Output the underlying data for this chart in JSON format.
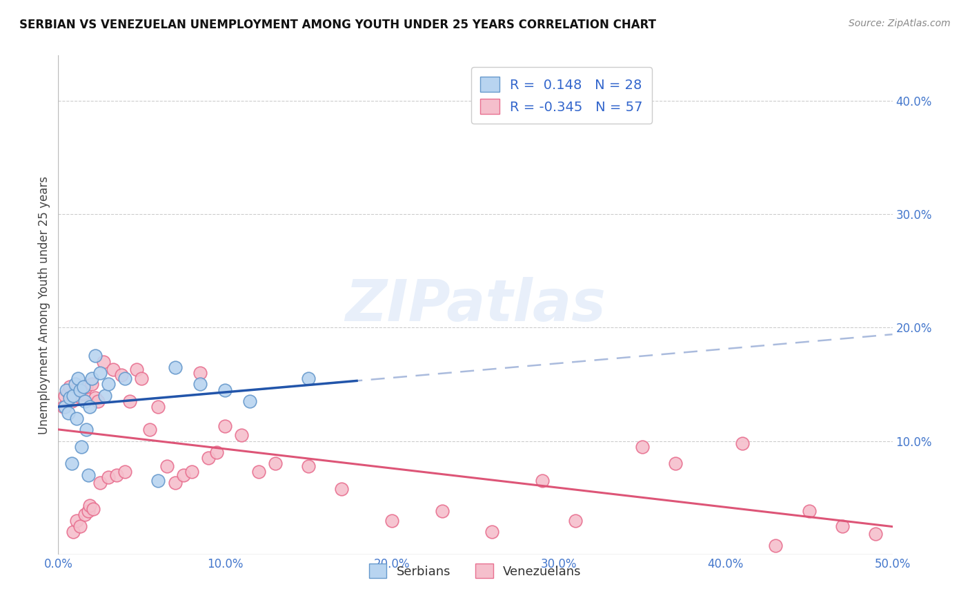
{
  "title": "SERBIAN VS VENEZUELAN UNEMPLOYMENT AMONG YOUTH UNDER 25 YEARS CORRELATION CHART",
  "source": "Source: ZipAtlas.com",
  "ylabel": "Unemployment Among Youth under 25 years",
  "xlim": [
    0.0,
    0.5
  ],
  "ylim": [
    0.0,
    0.44
  ],
  "xticks": [
    0.0,
    0.1,
    0.2,
    0.3,
    0.4,
    0.5
  ],
  "yticks": [
    0.1,
    0.2,
    0.3,
    0.4
  ],
  "xtick_labels": [
    "0.0%",
    "10.0%",
    "20.0%",
    "30.0%",
    "40.0%",
    "50.0%"
  ],
  "ytick_labels": [
    "10.0%",
    "20.0%",
    "30.0%",
    "40.0%"
  ],
  "watermark": "ZIPatlas",
  "serbian_color": "#b8d4f0",
  "venezuelan_color": "#f5bfcc",
  "serbian_edge_color": "#6699cc",
  "venezuelan_edge_color": "#e87090",
  "trend_serbian_color": "#2255aa",
  "trend_venezuelan_color": "#dd5577",
  "r_serbian": 0.148,
  "n_serbian": 28,
  "r_venezuelan": -0.345,
  "n_venezuelan": 57,
  "serbian_x": [
    0.004,
    0.005,
    0.006,
    0.007,
    0.008,
    0.009,
    0.01,
    0.011,
    0.012,
    0.013,
    0.014,
    0.015,
    0.016,
    0.017,
    0.018,
    0.019,
    0.02,
    0.022,
    0.025,
    0.028,
    0.03,
    0.04,
    0.06,
    0.07,
    0.085,
    0.1,
    0.115,
    0.15
  ],
  "serbian_y": [
    0.13,
    0.145,
    0.125,
    0.138,
    0.08,
    0.14,
    0.15,
    0.12,
    0.155,
    0.145,
    0.095,
    0.148,
    0.135,
    0.11,
    0.07,
    0.13,
    0.155,
    0.175,
    0.16,
    0.14,
    0.15,
    0.155,
    0.065,
    0.165,
    0.15,
    0.145,
    0.135,
    0.155
  ],
  "venezuelan_x": [
    0.003,
    0.004,
    0.006,
    0.007,
    0.008,
    0.009,
    0.01,
    0.011,
    0.012,
    0.013,
    0.014,
    0.015,
    0.016,
    0.017,
    0.018,
    0.019,
    0.02,
    0.021,
    0.022,
    0.024,
    0.025,
    0.027,
    0.03,
    0.033,
    0.035,
    0.038,
    0.04,
    0.043,
    0.047,
    0.05,
    0.055,
    0.06,
    0.065,
    0.07,
    0.075,
    0.08,
    0.085,
    0.09,
    0.095,
    0.1,
    0.11,
    0.12,
    0.13,
    0.15,
    0.17,
    0.2,
    0.23,
    0.26,
    0.29,
    0.31,
    0.35,
    0.37,
    0.41,
    0.43,
    0.45,
    0.47,
    0.49
  ],
  "venezuelan_y": [
    0.13,
    0.14,
    0.143,
    0.148,
    0.135,
    0.02,
    0.145,
    0.03,
    0.14,
    0.025,
    0.138,
    0.142,
    0.035,
    0.148,
    0.038,
    0.043,
    0.15,
    0.04,
    0.138,
    0.135,
    0.063,
    0.17,
    0.068,
    0.163,
    0.07,
    0.158,
    0.073,
    0.135,
    0.163,
    0.155,
    0.11,
    0.13,
    0.078,
    0.063,
    0.07,
    0.073,
    0.16,
    0.085,
    0.09,
    0.113,
    0.105,
    0.073,
    0.08,
    0.078,
    0.058,
    0.03,
    0.038,
    0.02,
    0.065,
    0.03,
    0.095,
    0.08,
    0.098,
    0.008,
    0.038,
    0.025,
    0.018
  ]
}
